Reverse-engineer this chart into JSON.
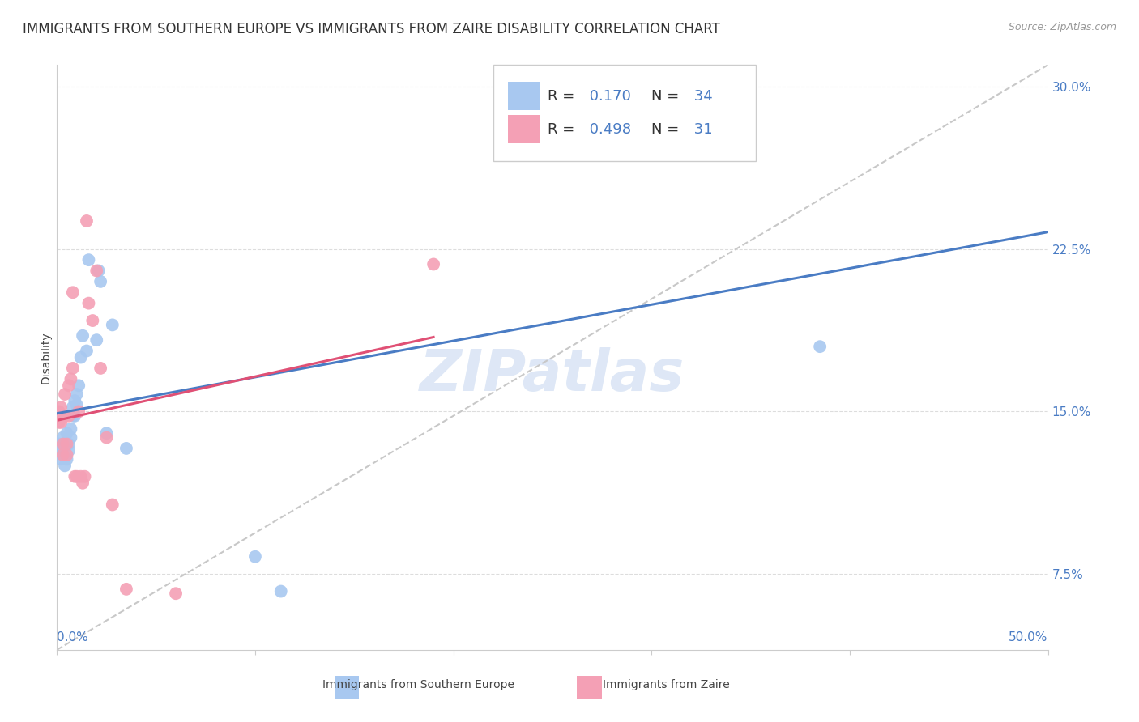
{
  "title": "IMMIGRANTS FROM SOUTHERN EUROPE VS IMMIGRANTS FROM ZAIRE DISABILITY CORRELATION CHART",
  "source": "Source: ZipAtlas.com",
  "ylabel": "Disability",
  "xlim": [
    0.0,
    0.5
  ],
  "ylim": [
    0.04,
    0.31
  ],
  "xtick_left": "0.0%",
  "xtick_right": "50.0%",
  "yticks": [
    0.075,
    0.15,
    0.225,
    0.3
  ],
  "yticklabels": [
    "7.5%",
    "15.0%",
    "22.5%",
    "30.0%"
  ],
  "blue_color": "#A8C8F0",
  "pink_color": "#F4A0B5",
  "blue_line_color": "#4A7CC4",
  "pink_line_color": "#E05075",
  "diag_color": "#C8C8C8",
  "grid_color": "#DDDDDD",
  "watermark": "ZIPatlas",
  "watermark_color": "#C8D8F0",
  "watermark_alpha": 0.6,
  "watermark_fontsize": 52,
  "R_blue": 0.17,
  "N_blue": 34,
  "R_pink": 0.498,
  "N_pink": 31,
  "blue_scatter_x": [
    0.001,
    0.002,
    0.002,
    0.003,
    0.003,
    0.004,
    0.004,
    0.005,
    0.005,
    0.006,
    0.006,
    0.007,
    0.007,
    0.008,
    0.008,
    0.009,
    0.009,
    0.01,
    0.01,
    0.011,
    0.012,
    0.013,
    0.015,
    0.016,
    0.02,
    0.021,
    0.022,
    0.025,
    0.028,
    0.035,
    0.1,
    0.113,
    0.385,
    0.27
  ],
  "blue_scatter_y": [
    0.135,
    0.128,
    0.132,
    0.13,
    0.138,
    0.125,
    0.135,
    0.128,
    0.14,
    0.135,
    0.132,
    0.142,
    0.138,
    0.148,
    0.152,
    0.155,
    0.148,
    0.158,
    0.153,
    0.162,
    0.175,
    0.185,
    0.178,
    0.22,
    0.183,
    0.215,
    0.21,
    0.14,
    0.19,
    0.133,
    0.083,
    0.067,
    0.18,
    0.298
  ],
  "pink_scatter_x": [
    0.001,
    0.002,
    0.002,
    0.003,
    0.003,
    0.004,
    0.004,
    0.005,
    0.005,
    0.006,
    0.006,
    0.007,
    0.008,
    0.008,
    0.009,
    0.01,
    0.011,
    0.012,
    0.013,
    0.014,
    0.015,
    0.016,
    0.018,
    0.02,
    0.022,
    0.025,
    0.028,
    0.035,
    0.06,
    0.19,
    0.001
  ],
  "pink_scatter_y": [
    0.15,
    0.145,
    0.152,
    0.135,
    0.13,
    0.148,
    0.158,
    0.13,
    0.135,
    0.162,
    0.148,
    0.165,
    0.205,
    0.17,
    0.12,
    0.12,
    0.15,
    0.12,
    0.117,
    0.12,
    0.238,
    0.2,
    0.192,
    0.215,
    0.17,
    0.138,
    0.107,
    0.068,
    0.066,
    0.218,
    0.145
  ],
  "legend_label_blue": "Immigrants from Southern Europe",
  "legend_label_pink": "Immigrants from Zaire",
  "title_fontsize": 12,
  "source_fontsize": 9,
  "axis_label_fontsize": 10,
  "tick_fontsize": 11,
  "legend_fontsize": 13
}
